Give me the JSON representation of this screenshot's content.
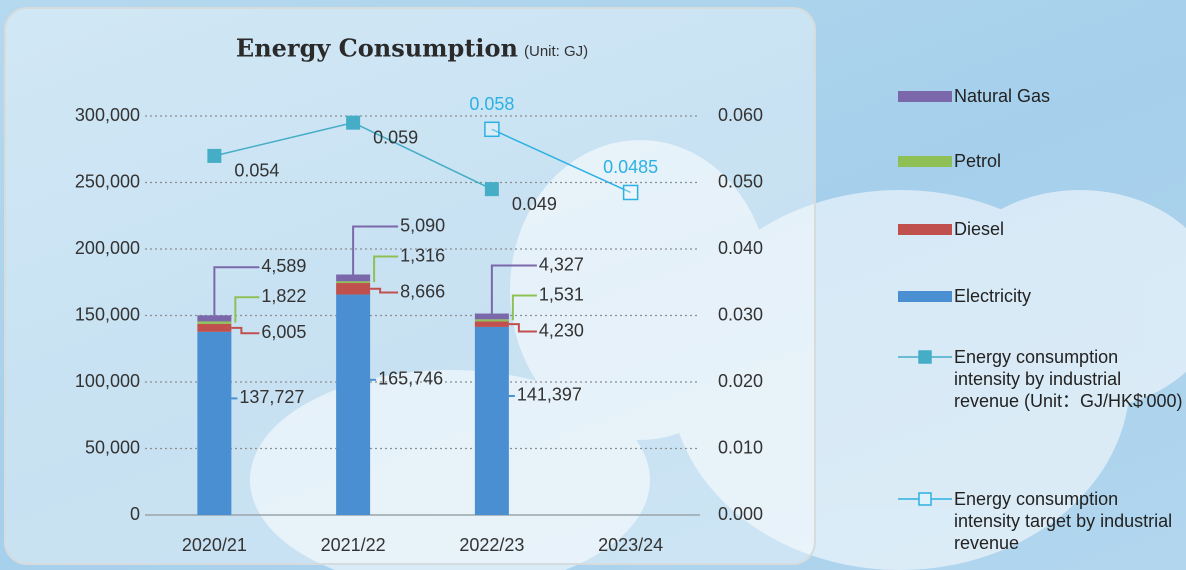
{
  "chart_data": {
    "type": "bar",
    "stacked": true,
    "title": "Energy Consumption",
    "subtitle": "(Unit: GJ)",
    "categories": [
      "2020/21",
      "2021/22",
      "2022/23",
      "2023/24"
    ],
    "ylim": [
      0,
      300000
    ],
    "yticks": [
      0,
      {
        "value": 50000,
        "label": "50,000"
      },
      {
        "value": 100000,
        "label": "100,000"
      },
      {
        "value": 150000,
        "label": "150,000"
      },
      {
        "value": 200000,
        "label": "200,000"
      },
      {
        "value": 250000,
        "label": "250,000"
      },
      {
        "value": 300000,
        "label": "300,000"
      }
    ],
    "y2lim": [
      0,
      0.06
    ],
    "y2ticks": [
      {
        "value": 0,
        "label": "0.000"
      },
      {
        "value": 0.01,
        "label": "0.010"
      },
      {
        "value": 0.02,
        "label": "0.020"
      },
      {
        "value": 0.03,
        "label": "0.030"
      },
      {
        "value": 0.04,
        "label": "0.040"
      },
      {
        "value": 0.05,
        "label": "0.050"
      },
      {
        "value": 0.06,
        "label": "0.060"
      }
    ],
    "grid": true,
    "legend": "right",
    "series": [
      {
        "name": "Natural Gas",
        "type": "bar",
        "color": "#7b68aa",
        "values": [
          4589,
          5090,
          4327,
          null
        ],
        "value_labels": [
          "4,589",
          "5,090",
          "4,327",
          null
        ]
      },
      {
        "name": "Petrol",
        "type": "bar",
        "color": "#8fc056",
        "values": [
          1822,
          1316,
          1531,
          null
        ],
        "value_labels": [
          "1,822",
          "1,316",
          "1,531",
          null
        ]
      },
      {
        "name": "Diesel",
        "type": "bar",
        "color": "#c0504d",
        "values": [
          6005,
          8666,
          4230,
          null
        ],
        "value_labels": [
          "6,005",
          "8,666",
          "4,230",
          null
        ]
      },
      {
        "name": "Electricity",
        "type": "bar",
        "color": "#4a8fd2",
        "values": [
          137727,
          165746,
          141397,
          null
        ],
        "value_labels": [
          "137,727",
          "165,746",
          "141,397",
          null
        ]
      },
      {
        "name": "Energy consumption intensity by industrial revenue (Unit：GJ/HK$'000)",
        "type": "line",
        "axis": "y2",
        "marker": "filled",
        "color": "#45adc6",
        "values": [
          0.054,
          0.059,
          0.049,
          null
        ]
      },
      {
        "name": "Energy consumption intensity target by industrial revenue",
        "type": "line",
        "axis": "y2",
        "marker": "hollow",
        "color": "#2cb1e2",
        "values": [
          null,
          null,
          0.058,
          0.0485
        ]
      }
    ]
  }
}
